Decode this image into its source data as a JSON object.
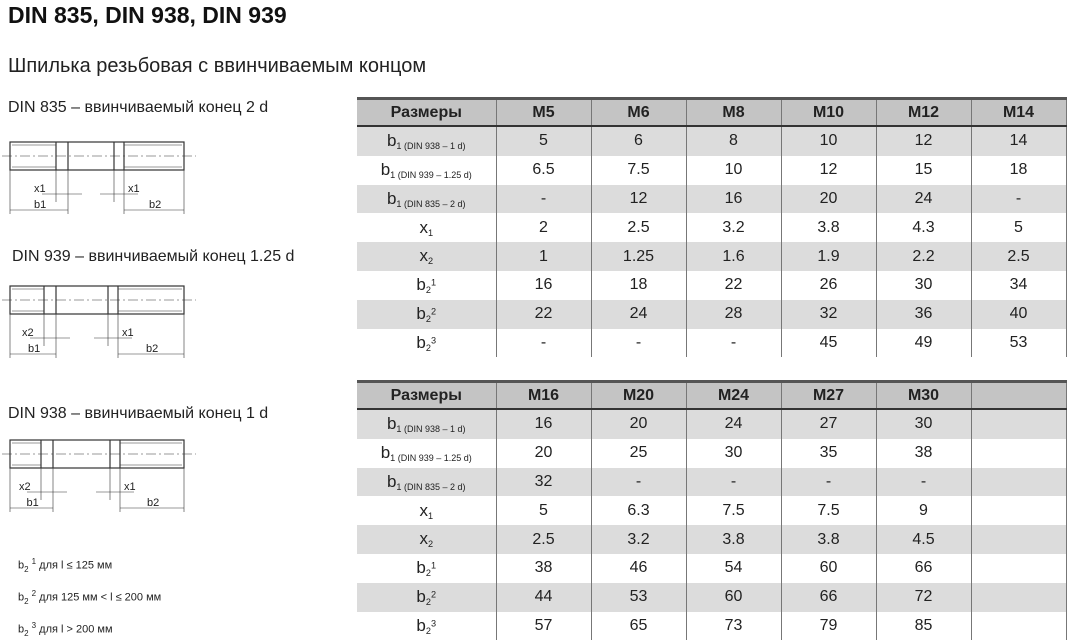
{
  "title": "DIN 835, DIN 938, DIN 939",
  "subtitle": "Шпилька резьбовая с ввинчиваемым концом",
  "captions": [
    "DIN 835 – ввинчиваемый конец 2 d",
    "DIN 939 – ввинчиваемый конец 1.25 d",
    "DIN 938 – ввинчиваемый конец 1 d"
  ],
  "drawing_labels": {
    "d835": [
      "x1",
      "x1",
      "b1",
      "b2"
    ],
    "d939": [
      "x2",
      "x1",
      "b1",
      "b2"
    ],
    "d938": [
      "x2",
      "x1",
      "b1",
      "b2"
    ]
  },
  "row_labels": [
    {
      "main": "Размеры",
      "sub": ""
    },
    {
      "main": "b",
      "idx": "1",
      "sub": " (DIN 938 – 1 d)"
    },
    {
      "main": "b",
      "idx": "1",
      "sub": " (DIN 939 – 1.25 d)"
    },
    {
      "main": "b",
      "idx": "1",
      "sub": " (DIN 835 – 2 d)"
    },
    {
      "main": "x",
      "idx": "1",
      "sub": ""
    },
    {
      "main": "x",
      "idx": "2",
      "sub": ""
    },
    {
      "main": "b",
      "idx": "2",
      "sup": "1"
    },
    {
      "main": "b",
      "idx": "2",
      "sup": "2"
    },
    {
      "main": "b",
      "idx": "2",
      "sup": "3"
    }
  ],
  "table1": {
    "columns": [
      "M5",
      "M6",
      "M8",
      "M10",
      "M12",
      "M14"
    ],
    "rows": [
      [
        "5",
        "6",
        "8",
        "10",
        "12",
        "14"
      ],
      [
        "6.5",
        "7.5",
        "10",
        "12",
        "15",
        "18"
      ],
      [
        "-",
        "12",
        "16",
        "20",
        "24",
        "-"
      ],
      [
        "2",
        "2.5",
        "3.2",
        "3.8",
        "4.3",
        "5"
      ],
      [
        "1",
        "1.25",
        "1.6",
        "1.9",
        "2.2",
        "2.5"
      ],
      [
        "16",
        "18",
        "22",
        "26",
        "30",
        "34"
      ],
      [
        "22",
        "24",
        "28",
        "32",
        "36",
        "40"
      ],
      [
        "-",
        "-",
        "-",
        "45",
        "49",
        "53"
      ]
    ]
  },
  "table2": {
    "columns": [
      "M16",
      "M20",
      "M24",
      "M27",
      "M30",
      ""
    ],
    "rows": [
      [
        "16",
        "20",
        "24",
        "27",
        "30",
        ""
      ],
      [
        "20",
        "25",
        "30",
        "35",
        "38",
        ""
      ],
      [
        "32",
        "-",
        "-",
        "-",
        "-",
        ""
      ],
      [
        "5",
        "6.3",
        "7.5",
        "7.5",
        "9",
        ""
      ],
      [
        "2.5",
        "3.2",
        "3.8",
        "3.8",
        "4.5",
        ""
      ],
      [
        "38",
        "46",
        "54",
        "60",
        "66",
        ""
      ],
      [
        "44",
        "53",
        "60",
        "66",
        "72",
        ""
      ],
      [
        "57",
        "65",
        "73",
        "79",
        "85",
        ""
      ]
    ]
  },
  "footnotes": [
    {
      "sup": "1",
      "text": " для l ≤ 125 мм"
    },
    {
      "sup": "2",
      "text": " для 125 мм < l ≤ 200 мм"
    },
    {
      "sup": "3",
      "text": " для l > 200 мм"
    }
  ]
}
